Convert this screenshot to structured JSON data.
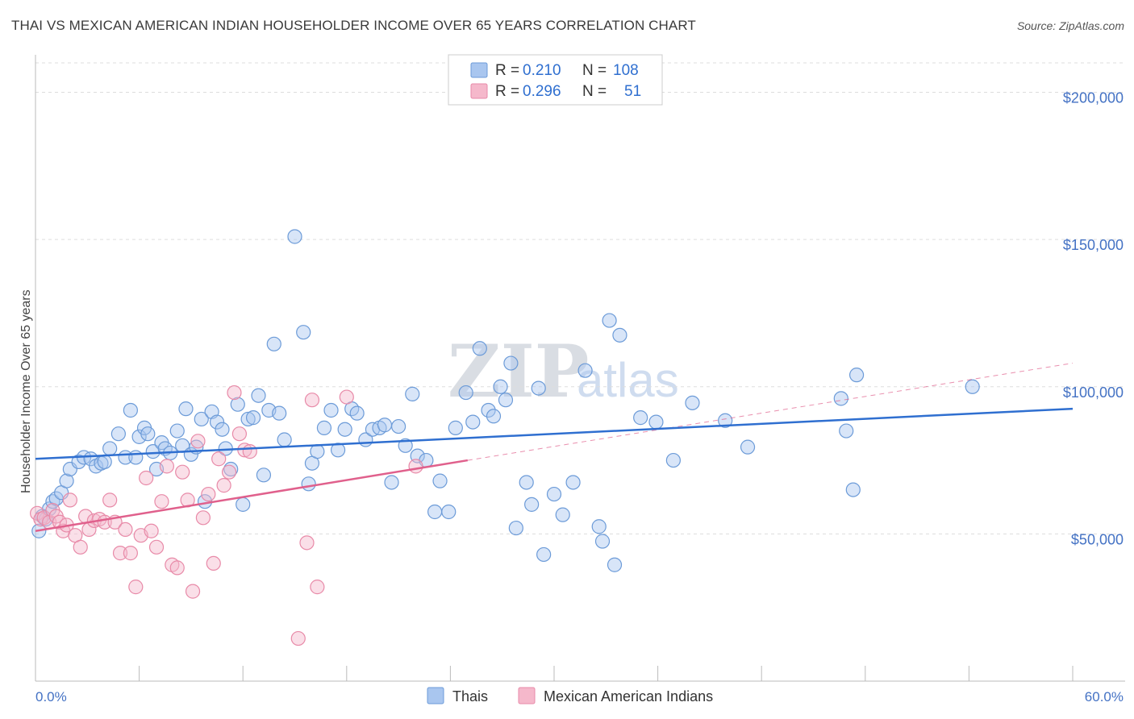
{
  "header": {
    "title": "THAI VS MEXICAN AMERICAN INDIAN HOUSEHOLDER INCOME OVER 65 YEARS CORRELATION CHART",
    "source": "Source: ZipAtlas.com"
  },
  "watermark": {
    "zip": "ZIP",
    "atlas": "atlas"
  },
  "legend_top": {
    "rows": [
      {
        "r_label": "R =",
        "r_value": "0.210",
        "n_label": "N =",
        "n_value": "108"
      },
      {
        "r_label": "R =",
        "r_value": "0.296",
        "n_label": "N =",
        "n_value": "51"
      }
    ]
  },
  "colors": {
    "thai_fill": "#a9c6ef",
    "thai_stroke": "#6c9bd8",
    "thai_line": "#2f6fd0",
    "mex_fill": "#f5b8cb",
    "mex_stroke": "#e88aa8",
    "mex_line": "#e0608c",
    "grid": "#dddddd",
    "axis_text": "#4472c4"
  },
  "chart_data": {
    "type": "scatter",
    "title": "THAI VS MEXICAN AMERICAN INDIAN HOUSEHOLDER INCOME OVER 65 YEARS CORRELATION CHART",
    "xlabel": "",
    "ylabel": "Householder Income Over 65 years",
    "xlim": [
      0,
      60
    ],
    "ylim": [
      0,
      210000
    ],
    "x_tick_labels": [
      "0.0%",
      "60.0%"
    ],
    "y_ticks": [
      50000,
      100000,
      150000,
      200000
    ],
    "y_tick_labels": [
      "$50,000",
      "$100,000",
      "$150,000",
      "$200,000"
    ],
    "grid": true,
    "legend_position": "top-center",
    "series": [
      {
        "name": "Thais",
        "R": 0.21,
        "N": 108,
        "trend": {
          "x": [
            0,
            60
          ],
          "y": [
            75500,
            92500
          ]
        },
        "points": [
          [
            0.2,
            51000
          ],
          [
            0.4,
            56000
          ],
          [
            0.6,
            55000
          ],
          [
            0.8,
            58500
          ],
          [
            1.0,
            61000
          ],
          [
            1.2,
            62000
          ],
          [
            1.5,
            64000
          ],
          [
            1.8,
            68000
          ],
          [
            2.0,
            72000
          ],
          [
            2.5,
            74500
          ],
          [
            2.8,
            76000
          ],
          [
            3.2,
            75500
          ],
          [
            3.5,
            73000
          ],
          [
            3.8,
            74000
          ],
          [
            4.0,
            74500
          ],
          [
            4.3,
            79000
          ],
          [
            4.8,
            84000
          ],
          [
            5.2,
            76000
          ],
          [
            5.5,
            92000
          ],
          [
            5.8,
            76000
          ],
          [
            6.0,
            83000
          ],
          [
            6.3,
            86000
          ],
          [
            6.5,
            84000
          ],
          [
            6.8,
            78000
          ],
          [
            7.0,
            72000
          ],
          [
            7.3,
            81000
          ],
          [
            7.5,
            79000
          ],
          [
            7.8,
            77500
          ],
          [
            8.2,
            85000
          ],
          [
            8.5,
            80000
          ],
          [
            8.7,
            92500
          ],
          [
            9.0,
            77000
          ],
          [
            9.3,
            79500
          ],
          [
            9.6,
            89000
          ],
          [
            9.8,
            61000
          ],
          [
            10.2,
            91500
          ],
          [
            10.5,
            88000
          ],
          [
            10.8,
            85500
          ],
          [
            11.0,
            79000
          ],
          [
            11.3,
            72000
          ],
          [
            11.7,
            94000
          ],
          [
            12.0,
            60000
          ],
          [
            12.3,
            89000
          ],
          [
            12.6,
            89500
          ],
          [
            12.9,
            97000
          ],
          [
            13.2,
            70000
          ],
          [
            13.5,
            92000
          ],
          [
            13.8,
            114500
          ],
          [
            14.1,
            91000
          ],
          [
            14.4,
            82000
          ],
          [
            15.0,
            151000
          ],
          [
            15.5,
            118500
          ],
          [
            15.8,
            67000
          ],
          [
            16.0,
            74000
          ],
          [
            16.3,
            78000
          ],
          [
            16.7,
            86000
          ],
          [
            17.1,
            92000
          ],
          [
            17.5,
            78500
          ],
          [
            17.9,
            85500
          ],
          [
            18.3,
            92500
          ],
          [
            18.6,
            91000
          ],
          [
            19.1,
            82000
          ],
          [
            19.5,
            85500
          ],
          [
            19.9,
            86000
          ],
          [
            20.2,
            87000
          ],
          [
            20.6,
            67500
          ],
          [
            21.0,
            86500
          ],
          [
            21.4,
            80000
          ],
          [
            21.8,
            97500
          ],
          [
            22.1,
            76500
          ],
          [
            22.6,
            75000
          ],
          [
            23.1,
            57500
          ],
          [
            23.4,
            68000
          ],
          [
            23.9,
            57500
          ],
          [
            24.3,
            86000
          ],
          [
            24.9,
            98000
          ],
          [
            25.3,
            88000
          ],
          [
            25.7,
            113000
          ],
          [
            26.2,
            92000
          ],
          [
            26.5,
            90000
          ],
          [
            26.9,
            100000
          ],
          [
            27.2,
            95500
          ],
          [
            27.5,
            108000
          ],
          [
            27.8,
            52000
          ],
          [
            28.4,
            67500
          ],
          [
            28.7,
            60000
          ],
          [
            29.1,
            99500
          ],
          [
            29.4,
            43000
          ],
          [
            30.0,
            63500
          ],
          [
            30.5,
            56500
          ],
          [
            31.1,
            67500
          ],
          [
            31.8,
            105500
          ],
          [
            32.6,
            52500
          ],
          [
            32.8,
            47500
          ],
          [
            33.2,
            122500
          ],
          [
            33.5,
            39500
          ],
          [
            33.8,
            117500
          ],
          [
            35.0,
            89500
          ],
          [
            35.9,
            88000
          ],
          [
            36.9,
            75000
          ],
          [
            38.0,
            94500
          ],
          [
            39.9,
            88500
          ],
          [
            41.2,
            79500
          ],
          [
            46.6,
            96000
          ],
          [
            46.9,
            85000
          ],
          [
            47.3,
            65000
          ],
          [
            47.5,
            104000
          ],
          [
            54.2,
            100000
          ]
        ]
      },
      {
        "name": "Mexican American Indians",
        "R": 0.296,
        "N": 51,
        "trend": {
          "x": [
            0,
            25
          ],
          "y": [
            51000,
            75000
          ]
        },
        "trend_extended": {
          "x": [
            25,
            60
          ],
          "y": [
            75000,
            108000
          ]
        },
        "points": [
          [
            0.1,
            57000
          ],
          [
            0.3,
            55000
          ],
          [
            0.5,
            55500
          ],
          [
            0.8,
            54000
          ],
          [
            1.0,
            58000
          ],
          [
            1.2,
            56000
          ],
          [
            1.4,
            54000
          ],
          [
            1.6,
            51000
          ],
          [
            1.8,
            53000
          ],
          [
            2.0,
            61500
          ],
          [
            2.3,
            49500
          ],
          [
            2.6,
            45500
          ],
          [
            2.9,
            56000
          ],
          [
            3.1,
            51500
          ],
          [
            3.4,
            54500
          ],
          [
            3.7,
            55000
          ],
          [
            4.0,
            54000
          ],
          [
            4.3,
            61500
          ],
          [
            4.6,
            54000
          ],
          [
            4.9,
            43500
          ],
          [
            5.2,
            51500
          ],
          [
            5.5,
            43500
          ],
          [
            5.8,
            32000
          ],
          [
            6.1,
            49500
          ],
          [
            6.4,
            69000
          ],
          [
            6.7,
            51000
          ],
          [
            7.0,
            45500
          ],
          [
            7.3,
            61000
          ],
          [
            7.6,
            73000
          ],
          [
            7.9,
            39500
          ],
          [
            8.2,
            38500
          ],
          [
            8.5,
            71000
          ],
          [
            8.8,
            61500
          ],
          [
            9.1,
            30500
          ],
          [
            9.4,
            81500
          ],
          [
            9.7,
            55500
          ],
          [
            10.0,
            63500
          ],
          [
            10.3,
            40000
          ],
          [
            10.6,
            75500
          ],
          [
            10.9,
            66500
          ],
          [
            11.2,
            71000
          ],
          [
            11.5,
            98000
          ],
          [
            11.8,
            84000
          ],
          [
            12.1,
            78500
          ],
          [
            12.4,
            78000
          ],
          [
            15.2,
            14500
          ],
          [
            15.7,
            47000
          ],
          [
            16.0,
            95500
          ],
          [
            16.3,
            32000
          ],
          [
            18.0,
            96500
          ],
          [
            22.0,
            73000
          ]
        ]
      }
    ]
  },
  "legend_bottom": {
    "items": [
      {
        "label": "Thais"
      },
      {
        "label": "Mexican American Indians"
      }
    ]
  }
}
